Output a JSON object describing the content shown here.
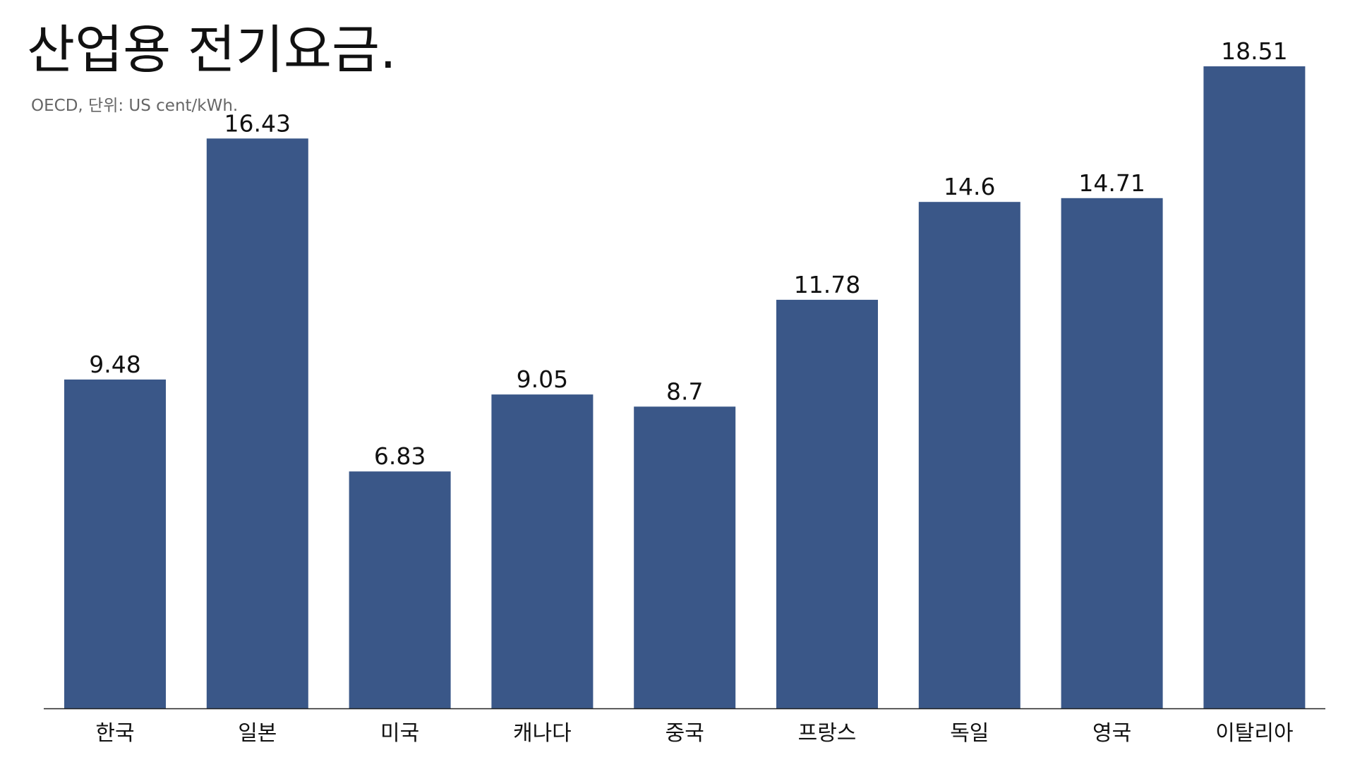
{
  "chart_data": {
    "type": "bar",
    "title": "산업용 전기요금.",
    "subtitle": "OECD, 단위: US cent/kWh.",
    "categories": [
      "한국",
      "일본",
      "미국",
      "캐나다",
      "중국",
      "프랑스",
      "독일",
      "영국",
      "이탈리아"
    ],
    "values": [
      9.48,
      16.43,
      6.83,
      9.05,
      8.7,
      11.78,
      14.6,
      14.71,
      18.51
    ],
    "value_labels": [
      "9.48",
      "16.43",
      "6.83",
      "9.05",
      "8.7",
      "11.78",
      "14.6",
      "14.71",
      "18.51"
    ],
    "xlabel": "",
    "ylabel": "",
    "ylim": [
      0,
      18.51
    ],
    "grid": false,
    "legend": "none",
    "bar_color": "#3a5788",
    "axis_color": "#222222"
  }
}
